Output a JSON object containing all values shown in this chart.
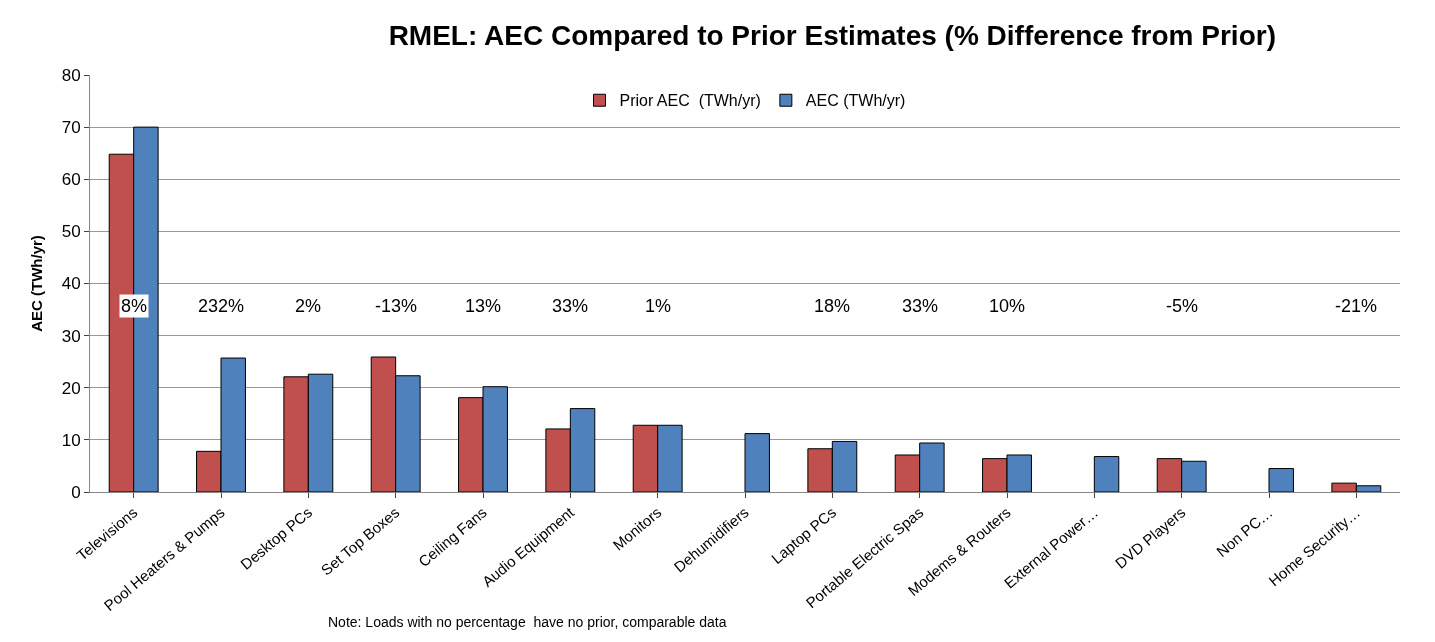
{
  "chart_data": {
    "type": "bar",
    "title": "RMEL: AEC Compared to Prior Estimates (% Difference from Prior)",
    "ylabel": "AEC (TWh/yr)",
    "categories": [
      "Televisions",
      "Pool Heaters & Pumps",
      "Desktop PCs",
      "Set Top Boxes",
      "Ceiling Fans",
      "Audio Equipment",
      "Monitors",
      "Dehumidifiers",
      "Laptop PCs",
      "Portable Electric Spas",
      "Modems & Routers",
      "External Power…",
      "DVD Players",
      "Non PC…",
      "Home Security…"
    ],
    "series": [
      {
        "name": "Prior AEC  (TWh/yr)",
        "color": "#c0504d",
        "values": [
          64.8,
          7.8,
          22.1,
          25.9,
          18.1,
          12.1,
          12.8,
          null,
          8.3,
          7.1,
          6.4,
          null,
          6.4,
          null,
          1.7
        ]
      },
      {
        "name": "AEC (TWh/yr)",
        "color": "#4f81bd",
        "values": [
          70,
          25.7,
          22.6,
          22.3,
          20.2,
          16.0,
          12.8,
          11.2,
          9.7,
          9.4,
          7.1,
          6.8,
          5.9,
          4.5,
          1.2
        ]
      }
    ],
    "ylim": [
      0,
      80
    ],
    "yticks": [
      0,
      10,
      20,
      30,
      40,
      50,
      60,
      70,
      80
    ],
    "grid": "y",
    "legend": "top",
    "annotations": [
      "8%",
      "232%",
      "2%",
      "-13%",
      "13%",
      "33%",
      "1%",
      "18%",
      "33%",
      "10%",
      "-5%",
      "-21%",
      "Note: Loads with no percentage  have no prior, comparable data"
    ]
  }
}
